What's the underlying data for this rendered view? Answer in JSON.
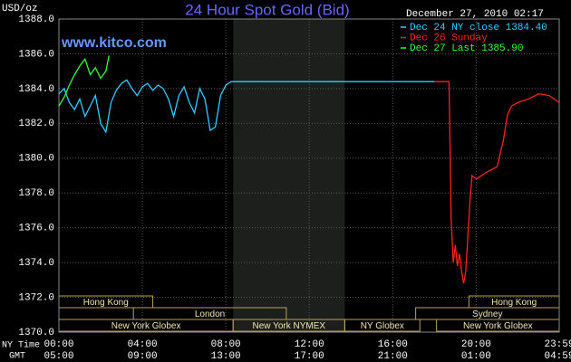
{
  "chart_data": {
    "type": "line",
    "title": "24 Hour Spot Gold (Bid)",
    "y_label": "USD/oz",
    "timestamp": "December 27, 2010 02:17",
    "watermark": "www.kitco.com",
    "x_label": "NY Time",
    "x2_label": "GMT",
    "xlim": [
      0,
      23.98
    ],
    "ylim": [
      1370,
      1388
    ],
    "yticks": [
      {
        "value": 1370,
        "label": "1370.0"
      },
      {
        "value": 1372,
        "label": "1372.0"
      },
      {
        "value": 1374,
        "label": "1374.0"
      },
      {
        "value": 1376,
        "label": "1376.0"
      },
      {
        "value": 1378,
        "label": "1378.0"
      },
      {
        "value": 1380,
        "label": "1380.0"
      },
      {
        "value": 1382,
        "label": "1382.0"
      },
      {
        "value": 1384,
        "label": "1384.0"
      },
      {
        "value": 1386,
        "label": "1386.0"
      },
      {
        "value": 1388,
        "label": "1388.0"
      }
    ],
    "xticks": [
      {
        "value": 0,
        "label": "00:00"
      },
      {
        "value": 4,
        "label": "04:00"
      },
      {
        "value": 8,
        "label": "08:00"
      },
      {
        "value": 12,
        "label": "12:00"
      },
      {
        "value": 16,
        "label": "16:00"
      },
      {
        "value": 20,
        "label": "20:00"
      },
      {
        "value": 23.98,
        "label": "23:59"
      }
    ],
    "x2ticks": [
      {
        "value": 0,
        "label": "05:00"
      },
      {
        "value": 4,
        "label": "09:00"
      },
      {
        "value": 8,
        "label": "13:00"
      },
      {
        "value": 12,
        "label": "17:00"
      },
      {
        "value": 16,
        "label": "21:00"
      },
      {
        "value": 20,
        "label": "01:00"
      },
      {
        "value": 23.98,
        "label": "04:59"
      }
    ],
    "grid": true,
    "shaded_range": [
      8.35,
      13.7
    ],
    "series": [
      {
        "name": "Dec 24 NY close 1384.40",
        "color": "#33ccff",
        "x": [
          0,
          0.25,
          0.5,
          0.75,
          1,
          1.25,
          1.5,
          1.75,
          2,
          2.25,
          2.5,
          2.75,
          3,
          3.25,
          3.5,
          3.75,
          4,
          4.25,
          4.5,
          4.75,
          5,
          5.25,
          5.5,
          5.75,
          6,
          6.25,
          6.5,
          6.75,
          7,
          7.25,
          7.5,
          7.75,
          8,
          8.25,
          18
        ],
        "values": [
          1383.7,
          1384.0,
          1383.2,
          1382.8,
          1383.4,
          1382.4,
          1383.0,
          1383.6,
          1382.0,
          1381.5,
          1383.2,
          1383.9,
          1384.3,
          1384.5,
          1384.0,
          1383.6,
          1384.1,
          1384.3,
          1383.9,
          1384.2,
          1384.0,
          1383.4,
          1382.4,
          1383.6,
          1384.1,
          1383.2,
          1382.6,
          1384.0,
          1383.4,
          1381.6,
          1381.8,
          1383.6,
          1384.2,
          1384.4,
          1384.4
        ]
      },
      {
        "name": "Dec 26 Sunday",
        "color": "#ff2020",
        "x": [
          18,
          18.7,
          18.8,
          18.9,
          19.0,
          19.1,
          19.2,
          19.3,
          19.4,
          19.5,
          19.6,
          19.7,
          19.8,
          20,
          20.5,
          21,
          21.3,
          21.5,
          21.7,
          22,
          22.5,
          23,
          23.5,
          23.98
        ],
        "values": [
          1384.4,
          1384.4,
          1376.5,
          1374.0,
          1375.0,
          1373.8,
          1374.5,
          1373.5,
          1372.8,
          1373.5,
          1375.5,
          1377.5,
          1379.0,
          1378.8,
          1379.2,
          1379.5,
          1381.0,
          1382.5,
          1383.0,
          1383.2,
          1383.4,
          1383.7,
          1383.6,
          1383.2
        ]
      },
      {
        "name": "Dec 27 Last 1385.90",
        "color": "#33ff33",
        "x": [
          0,
          0.25,
          0.5,
          0.75,
          1,
          1.25,
          1.5,
          1.75,
          2,
          2.25,
          2.4
        ],
        "values": [
          1383.0,
          1383.5,
          1384.2,
          1384.8,
          1385.3,
          1385.7,
          1384.8,
          1385.2,
          1384.6,
          1385.0,
          1385.9
        ]
      }
    ],
    "session_rows": [
      [
        {
          "label": "Hong Kong",
          "start": 0,
          "end": 4.5
        },
        {
          "label": "Hong Kong",
          "start": 19.65,
          "end": 23.98
        }
      ],
      [
        {
          "label": "London",
          "start": 3.57,
          "end": 10.9
        },
        {
          "label": "Sydney",
          "start": 17.1,
          "end": 23.98
        }
      ],
      [
        {
          "label": "New York Globex",
          "start": 0,
          "end": 8.35
        },
        {
          "label": "New York NYMEX",
          "start": 8.35,
          "end": 13.7
        },
        {
          "label": "NY Globex",
          "start": 13.7,
          "end": 17.3
        },
        {
          "label": "New York Globex",
          "start": 18.1,
          "end": 23.98
        }
      ]
    ]
  }
}
